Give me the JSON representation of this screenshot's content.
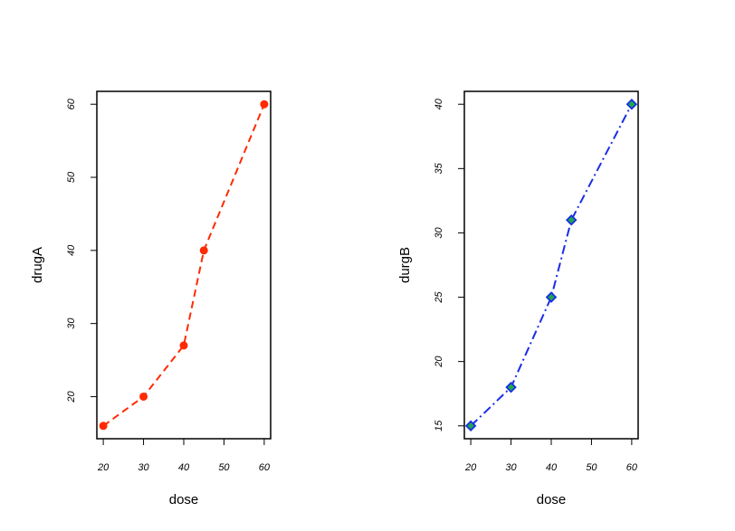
{
  "chart_data": [
    {
      "type": "line",
      "x": [
        20,
        30,
        40,
        45,
        60
      ],
      "values": [
        16,
        20,
        27,
        40,
        60
      ],
      "xlabel": "dose",
      "ylabel": "drugA",
      "color": "#ff2a00",
      "line_style": "dashed",
      "marker": "circle",
      "marker_fill": "#ff2a00",
      "xlim": [
        18.4,
        61.6
      ],
      "xticks": [
        20,
        30,
        40,
        50,
        60
      ],
      "ylim": [
        14.24,
        61.76
      ],
      "yticks": [
        20,
        30,
        40,
        50,
        60
      ]
    },
    {
      "type": "line",
      "x": [
        20,
        30,
        40,
        45,
        60
      ],
      "values": [
        15,
        18,
        25,
        31,
        40
      ],
      "xlabel": "dose",
      "ylabel": "durgB",
      "color": "#1a2ee6",
      "line_style": "dashdot",
      "marker": "diamond",
      "marker_fill": "#1fa84a",
      "xlim": [
        18.4,
        61.6
      ],
      "xticks": [
        20,
        30,
        40,
        50,
        60
      ],
      "ylim": [
        14,
        41
      ],
      "yticks": [
        15,
        20,
        25,
        30,
        35,
        40
      ]
    }
  ]
}
